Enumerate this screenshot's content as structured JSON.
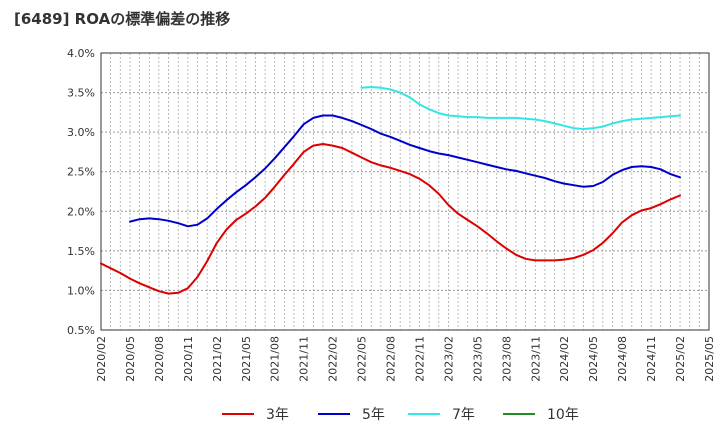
{
  "chart_data": {
    "type": "line",
    "title": "[6489]  ROAの標準偏差の推移",
    "xlabel": "",
    "ylabel": "",
    "ylim": [
      0.5,
      4.0
    ],
    "yticks": [
      "4.0%",
      "3.5%",
      "3.0%",
      "2.5%",
      "2.0%",
      "1.5%",
      "1.0%",
      "0.5%"
    ],
    "ytick_values": [
      4.0,
      3.5,
      3.0,
      2.5,
      2.0,
      1.5,
      1.0,
      0.5
    ],
    "xticks": [
      "2020/02",
      "2020/05",
      "2020/08",
      "2020/11",
      "2021/02",
      "2021/05",
      "2021/08",
      "2021/11",
      "2022/02",
      "2022/05",
      "2022/08",
      "2022/11",
      "2023/02",
      "2023/05",
      "2023/08",
      "2023/11",
      "2024/02",
      "2024/05",
      "2024/08",
      "2024/11",
      "2025/02",
      "2025/05"
    ],
    "x_start": "2020/02",
    "x_end": "2025/05",
    "grid": true,
    "legend_position": "bottom",
    "series": [
      {
        "name": "3年",
        "color": "#dd0000",
        "points": [
          [
            "2020/02",
            1.34
          ],
          [
            "2020/03",
            1.28
          ],
          [
            "2020/04",
            1.22
          ],
          [
            "2020/05",
            1.15
          ],
          [
            "2020/06",
            1.09
          ],
          [
            "2020/07",
            1.04
          ],
          [
            "2020/08",
            0.99
          ],
          [
            "2020/09",
            0.96
          ],
          [
            "2020/10",
            0.97
          ],
          [
            "2020/11",
            1.03
          ],
          [
            "2020/12",
            1.17
          ],
          [
            "2021/01",
            1.37
          ],
          [
            "2021/02",
            1.6
          ],
          [
            "2021/03",
            1.77
          ],
          [
            "2021/04",
            1.89
          ],
          [
            "2021/05",
            1.97
          ],
          [
            "2021/06",
            2.06
          ],
          [
            "2021/07",
            2.17
          ],
          [
            "2021/08",
            2.31
          ],
          [
            "2021/09",
            2.46
          ],
          [
            "2021/10",
            2.6
          ],
          [
            "2021/11",
            2.75
          ],
          [
            "2021/12",
            2.83
          ],
          [
            "2022/01",
            2.85
          ],
          [
            "2022/02",
            2.83
          ],
          [
            "2022/03",
            2.8
          ],
          [
            "2022/04",
            2.74
          ],
          [
            "2022/05",
            2.68
          ],
          [
            "2022/06",
            2.62
          ],
          [
            "2022/07",
            2.58
          ],
          [
            "2022/08",
            2.55
          ],
          [
            "2022/09",
            2.51
          ],
          [
            "2022/10",
            2.47
          ],
          [
            "2022/11",
            2.41
          ],
          [
            "2022/12",
            2.33
          ],
          [
            "2023/01",
            2.22
          ],
          [
            "2023/02",
            2.08
          ],
          [
            "2023/03",
            1.97
          ],
          [
            "2023/04",
            1.89
          ],
          [
            "2023/05",
            1.81
          ],
          [
            "2023/06",
            1.72
          ],
          [
            "2023/07",
            1.62
          ],
          [
            "2023/08",
            1.53
          ],
          [
            "2023/09",
            1.45
          ],
          [
            "2023/10",
            1.4
          ],
          [
            "2023/11",
            1.38
          ],
          [
            "2023/12",
            1.38
          ],
          [
            "2024/01",
            1.38
          ],
          [
            "2024/02",
            1.39
          ],
          [
            "2024/03",
            1.41
          ],
          [
            "2024/04",
            1.45
          ],
          [
            "2024/05",
            1.51
          ],
          [
            "2024/06",
            1.6
          ],
          [
            "2024/07",
            1.72
          ],
          [
            "2024/08",
            1.86
          ],
          [
            "2024/09",
            1.95
          ],
          [
            "2024/10",
            2.01
          ],
          [
            "2024/11",
            2.04
          ],
          [
            "2024/12",
            2.09
          ],
          [
            "2025/01",
            2.15
          ],
          [
            "2025/02",
            2.2
          ]
        ]
      },
      {
        "name": "5年",
        "color": "#0000cc",
        "points": [
          [
            "2020/05",
            1.87
          ],
          [
            "2020/06",
            1.9
          ],
          [
            "2020/07",
            1.91
          ],
          [
            "2020/08",
            1.9
          ],
          [
            "2020/09",
            1.88
          ],
          [
            "2020/10",
            1.85
          ],
          [
            "2020/11",
            1.81
          ],
          [
            "2020/12",
            1.83
          ],
          [
            "2021/01",
            1.91
          ],
          [
            "2021/02",
            2.03
          ],
          [
            "2021/03",
            2.14
          ],
          [
            "2021/04",
            2.24
          ],
          [
            "2021/05",
            2.33
          ],
          [
            "2021/06",
            2.43
          ],
          [
            "2021/07",
            2.54
          ],
          [
            "2021/08",
            2.67
          ],
          [
            "2021/09",
            2.81
          ],
          [
            "2021/10",
            2.95
          ],
          [
            "2021/11",
            3.1
          ],
          [
            "2021/12",
            3.18
          ],
          [
            "2022/01",
            3.21
          ],
          [
            "2022/02",
            3.21
          ],
          [
            "2022/03",
            3.18
          ],
          [
            "2022/04",
            3.14
          ],
          [
            "2022/05",
            3.09
          ],
          [
            "2022/06",
            3.04
          ],
          [
            "2022/07",
            2.98
          ],
          [
            "2022/08",
            2.94
          ],
          [
            "2022/09",
            2.89
          ],
          [
            "2022/10",
            2.84
          ],
          [
            "2022/11",
            2.8
          ],
          [
            "2022/12",
            2.76
          ],
          [
            "2023/01",
            2.73
          ],
          [
            "2023/02",
            2.71
          ],
          [
            "2023/03",
            2.68
          ],
          [
            "2023/04",
            2.65
          ],
          [
            "2023/05",
            2.62
          ],
          [
            "2023/06",
            2.59
          ],
          [
            "2023/07",
            2.56
          ],
          [
            "2023/08",
            2.53
          ],
          [
            "2023/09",
            2.51
          ],
          [
            "2023/10",
            2.48
          ],
          [
            "2023/11",
            2.45
          ],
          [
            "2023/12",
            2.42
          ],
          [
            "2024/01",
            2.38
          ],
          [
            "2024/02",
            2.35
          ],
          [
            "2024/03",
            2.33
          ],
          [
            "2024/04",
            2.31
          ],
          [
            "2024/05",
            2.32
          ],
          [
            "2024/06",
            2.37
          ],
          [
            "2024/07",
            2.46
          ],
          [
            "2024/08",
            2.52
          ],
          [
            "2024/09",
            2.56
          ],
          [
            "2024/10",
            2.57
          ],
          [
            "2024/11",
            2.56
          ],
          [
            "2024/12",
            2.53
          ],
          [
            "2025/01",
            2.47
          ],
          [
            "2025/02",
            2.43
          ]
        ]
      },
      {
        "name": "7年",
        "color": "#33e6e6",
        "points": [
          [
            "2022/05",
            3.56
          ],
          [
            "2022/06",
            3.57
          ],
          [
            "2022/07",
            3.56
          ],
          [
            "2022/08",
            3.54
          ],
          [
            "2022/09",
            3.5
          ],
          [
            "2022/10",
            3.44
          ],
          [
            "2022/11",
            3.35
          ],
          [
            "2022/12",
            3.29
          ],
          [
            "2023/01",
            3.24
          ],
          [
            "2023/02",
            3.21
          ],
          [
            "2023/03",
            3.2
          ],
          [
            "2023/04",
            3.19
          ],
          [
            "2023/05",
            3.19
          ],
          [
            "2023/06",
            3.18
          ],
          [
            "2023/07",
            3.18
          ],
          [
            "2023/08",
            3.18
          ],
          [
            "2023/09",
            3.18
          ],
          [
            "2023/10",
            3.17
          ],
          [
            "2023/11",
            3.16
          ],
          [
            "2023/12",
            3.14
          ],
          [
            "2024/01",
            3.11
          ],
          [
            "2024/02",
            3.08
          ],
          [
            "2024/03",
            3.05
          ],
          [
            "2024/04",
            3.04
          ],
          [
            "2024/05",
            3.05
          ],
          [
            "2024/06",
            3.07
          ],
          [
            "2024/07",
            3.11
          ],
          [
            "2024/08",
            3.14
          ],
          [
            "2024/09",
            3.16
          ],
          [
            "2024/10",
            3.17
          ],
          [
            "2024/11",
            3.18
          ],
          [
            "2024/12",
            3.19
          ],
          [
            "2025/01",
            3.2
          ],
          [
            "2025/02",
            3.21
          ]
        ]
      },
      {
        "name": "10年",
        "color": "#228b22",
        "points": []
      }
    ]
  }
}
